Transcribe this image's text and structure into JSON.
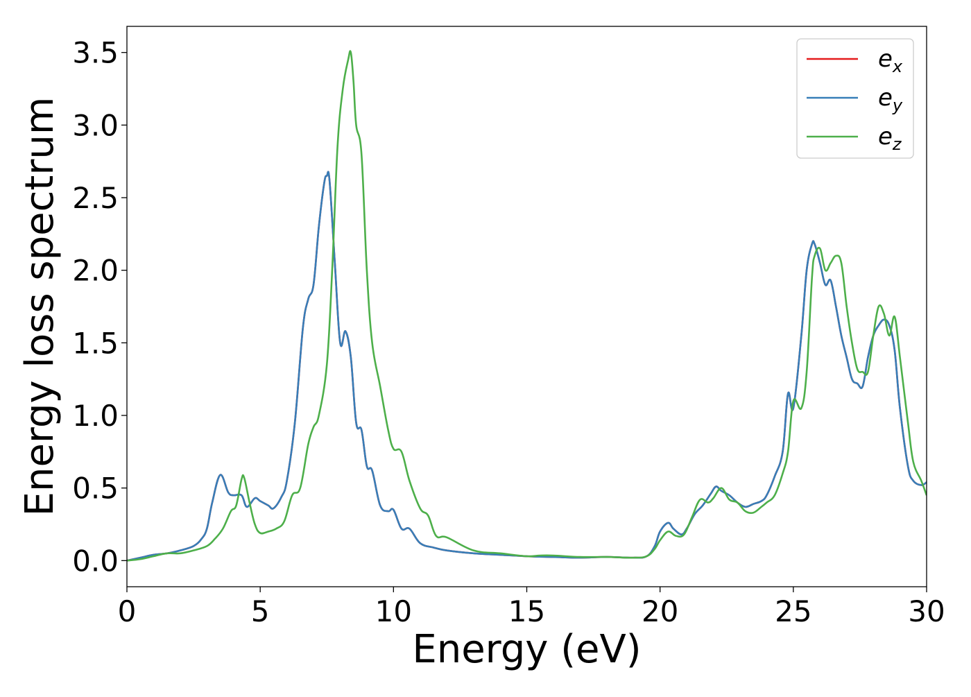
{
  "chart_data": {
    "type": "line",
    "xlabel": "Energy (eV)",
    "ylabel": "Energy loss spectrum",
    "xlim": [
      0,
      30
    ],
    "ylim": [
      -0.18,
      3.68
    ],
    "xticks": [
      0,
      5,
      10,
      15,
      20,
      25,
      30
    ],
    "xtick_labels": [
      "0",
      "5",
      "10",
      "15",
      "20",
      "25",
      "30"
    ],
    "yticks": [
      0.0,
      0.5,
      1.0,
      1.5,
      2.0,
      2.5,
      3.0,
      3.5
    ],
    "ytick_labels": [
      "0.0",
      "0.5",
      "1.0",
      "1.5",
      "2.0",
      "2.5",
      "3.0",
      "3.5"
    ],
    "grid": false,
    "legend_position": "top-right",
    "series": [
      {
        "name": "e_x",
        "label_main": "e",
        "label_sub": "x",
        "color": "#e41a1c",
        "x": [
          0,
          0.5,
          1.0,
          1.5,
          2.0,
          2.5,
          2.8,
          3.0,
          3.2,
          3.5,
          3.8,
          4.0,
          4.3,
          4.5,
          4.8,
          5.0,
          5.3,
          5.5,
          5.8,
          6.0,
          6.3,
          6.6,
          6.8,
          7.0,
          7.2,
          7.4,
          7.5,
          7.6,
          7.8,
          8.0,
          8.2,
          8.4,
          8.6,
          8.8,
          9.0,
          9.2,
          9.5,
          9.8,
          10.0,
          10.3,
          10.6,
          11.0,
          11.5,
          12.0,
          13.0,
          14.0,
          15.0,
          16.0,
          17.0,
          18.0,
          19.0,
          19.5,
          19.8,
          20.0,
          20.3,
          20.5,
          20.8,
          21.0,
          21.3,
          21.6,
          21.9,
          22.1,
          22.3,
          22.6,
          22.9,
          23.2,
          23.5,
          23.8,
          24.0,
          24.3,
          24.6,
          24.8,
          25.0,
          25.3,
          25.5,
          25.7,
          25.8,
          26.0,
          26.2,
          26.4,
          26.6,
          26.8,
          27.0,
          27.2,
          27.4,
          27.6,
          27.8,
          28.0,
          28.2,
          28.4,
          28.6,
          28.8,
          29.0,
          29.3,
          29.5,
          29.8,
          30.0
        ],
        "y": [
          0.0,
          0.02,
          0.04,
          0.05,
          0.07,
          0.1,
          0.15,
          0.22,
          0.4,
          0.59,
          0.47,
          0.45,
          0.45,
          0.37,
          0.43,
          0.41,
          0.38,
          0.36,
          0.44,
          0.55,
          0.95,
          1.6,
          1.8,
          1.9,
          2.3,
          2.6,
          2.65,
          2.62,
          2.05,
          1.5,
          1.58,
          1.4,
          0.95,
          0.9,
          0.65,
          0.62,
          0.38,
          0.34,
          0.35,
          0.22,
          0.22,
          0.12,
          0.09,
          0.07,
          0.05,
          0.04,
          0.03,
          0.025,
          0.02,
          0.025,
          0.02,
          0.03,
          0.1,
          0.2,
          0.26,
          0.22,
          0.18,
          0.22,
          0.32,
          0.38,
          0.46,
          0.51,
          0.48,
          0.45,
          0.4,
          0.37,
          0.39,
          0.41,
          0.45,
          0.58,
          0.75,
          1.15,
          1.05,
          1.55,
          2.0,
          2.18,
          2.18,
          2.05,
          1.9,
          1.93,
          1.75,
          1.55,
          1.4,
          1.25,
          1.22,
          1.2,
          1.4,
          1.55,
          1.62,
          1.66,
          1.62,
          1.45,
          1.05,
          0.65,
          0.55,
          0.52,
          0.54
        ]
      },
      {
        "name": "e_y",
        "label_main": "e",
        "label_sub": "y",
        "color": "#377eb8",
        "x": [
          0,
          0.5,
          1.0,
          1.5,
          2.0,
          2.5,
          2.8,
          3.0,
          3.2,
          3.5,
          3.8,
          4.0,
          4.3,
          4.5,
          4.8,
          5.0,
          5.3,
          5.5,
          5.8,
          6.0,
          6.3,
          6.6,
          6.8,
          7.0,
          7.2,
          7.4,
          7.5,
          7.6,
          7.8,
          8.0,
          8.2,
          8.4,
          8.6,
          8.8,
          9.0,
          9.2,
          9.5,
          9.8,
          10.0,
          10.3,
          10.6,
          11.0,
          11.5,
          12.0,
          13.0,
          14.0,
          15.0,
          16.0,
          17.0,
          18.0,
          19.0,
          19.5,
          19.8,
          20.0,
          20.3,
          20.5,
          20.8,
          21.0,
          21.3,
          21.6,
          21.9,
          22.1,
          22.3,
          22.6,
          22.9,
          23.2,
          23.5,
          23.8,
          24.0,
          24.3,
          24.6,
          24.8,
          25.0,
          25.3,
          25.5,
          25.7,
          25.8,
          26.0,
          26.2,
          26.4,
          26.6,
          26.8,
          27.0,
          27.2,
          27.4,
          27.6,
          27.8,
          28.0,
          28.2,
          28.4,
          28.6,
          28.8,
          29.0,
          29.3,
          29.5,
          29.8,
          30.0
        ],
        "y": [
          0.0,
          0.02,
          0.04,
          0.05,
          0.07,
          0.1,
          0.15,
          0.22,
          0.4,
          0.59,
          0.47,
          0.45,
          0.45,
          0.37,
          0.43,
          0.41,
          0.38,
          0.36,
          0.44,
          0.55,
          0.95,
          1.6,
          1.8,
          1.9,
          2.3,
          2.6,
          2.65,
          2.62,
          2.05,
          1.5,
          1.58,
          1.4,
          0.95,
          0.9,
          0.65,
          0.62,
          0.38,
          0.34,
          0.35,
          0.22,
          0.22,
          0.12,
          0.09,
          0.07,
          0.05,
          0.04,
          0.03,
          0.025,
          0.02,
          0.025,
          0.02,
          0.03,
          0.1,
          0.2,
          0.26,
          0.22,
          0.18,
          0.22,
          0.32,
          0.38,
          0.46,
          0.51,
          0.48,
          0.45,
          0.4,
          0.37,
          0.39,
          0.41,
          0.45,
          0.58,
          0.75,
          1.15,
          1.05,
          1.55,
          2.0,
          2.18,
          2.18,
          2.05,
          1.9,
          1.93,
          1.75,
          1.55,
          1.4,
          1.25,
          1.22,
          1.2,
          1.4,
          1.55,
          1.62,
          1.66,
          1.62,
          1.45,
          1.05,
          0.65,
          0.55,
          0.52,
          0.54
        ]
      },
      {
        "name": "e_z",
        "label_main": "e",
        "label_sub": "z",
        "color": "#4daf4a",
        "x": [
          0,
          0.5,
          1.0,
          1.5,
          2.0,
          2.5,
          3.0,
          3.3,
          3.6,
          3.9,
          4.1,
          4.3,
          4.4,
          4.6,
          4.8,
          5.0,
          5.3,
          5.6,
          5.9,
          6.2,
          6.5,
          6.8,
          7.0,
          7.2,
          7.5,
          7.7,
          7.9,
          8.1,
          8.3,
          8.4,
          8.5,
          8.6,
          8.8,
          9.0,
          9.2,
          9.5,
          9.8,
          10.0,
          10.3,
          10.6,
          11.0,
          11.3,
          11.6,
          12.0,
          13.0,
          14.0,
          15.0,
          15.5,
          16.0,
          17.0,
          18.0,
          19.0,
          19.5,
          19.8,
          20.0,
          20.3,
          20.6,
          20.9,
          21.2,
          21.5,
          21.8,
          22.0,
          22.3,
          22.6,
          22.9,
          23.2,
          23.5,
          23.8,
          24.0,
          24.3,
          24.6,
          24.8,
          25.0,
          25.3,
          25.5,
          25.7,
          25.8,
          26.0,
          26.2,
          26.4,
          26.6,
          26.8,
          27.0,
          27.2,
          27.4,
          27.6,
          27.8,
          28.0,
          28.2,
          28.4,
          28.6,
          28.8,
          29.0,
          29.3,
          29.5,
          29.8,
          30.0
        ],
        "y": [
          0.0,
          0.01,
          0.03,
          0.05,
          0.05,
          0.07,
          0.1,
          0.15,
          0.22,
          0.34,
          0.38,
          0.56,
          0.57,
          0.4,
          0.25,
          0.19,
          0.2,
          0.22,
          0.27,
          0.45,
          0.5,
          0.8,
          0.92,
          1.0,
          1.35,
          2.0,
          2.85,
          3.25,
          3.45,
          3.5,
          3.3,
          3.0,
          2.8,
          2.0,
          1.5,
          1.2,
          0.9,
          0.77,
          0.75,
          0.55,
          0.36,
          0.31,
          0.17,
          0.16,
          0.07,
          0.05,
          0.03,
          0.035,
          0.035,
          0.025,
          0.025,
          0.02,
          0.03,
          0.08,
          0.14,
          0.2,
          0.17,
          0.18,
          0.3,
          0.42,
          0.4,
          0.43,
          0.5,
          0.42,
          0.4,
          0.34,
          0.33,
          0.37,
          0.4,
          0.45,
          0.6,
          0.75,
          1.1,
          1.05,
          1.3,
          1.95,
          2.1,
          2.15,
          2.0,
          2.05,
          2.1,
          2.05,
          1.75,
          1.5,
          1.32,
          1.3,
          1.3,
          1.55,
          1.75,
          1.7,
          1.55,
          1.68,
          1.4,
          0.95,
          0.68,
          0.55,
          0.45
        ]
      }
    ]
  }
}
